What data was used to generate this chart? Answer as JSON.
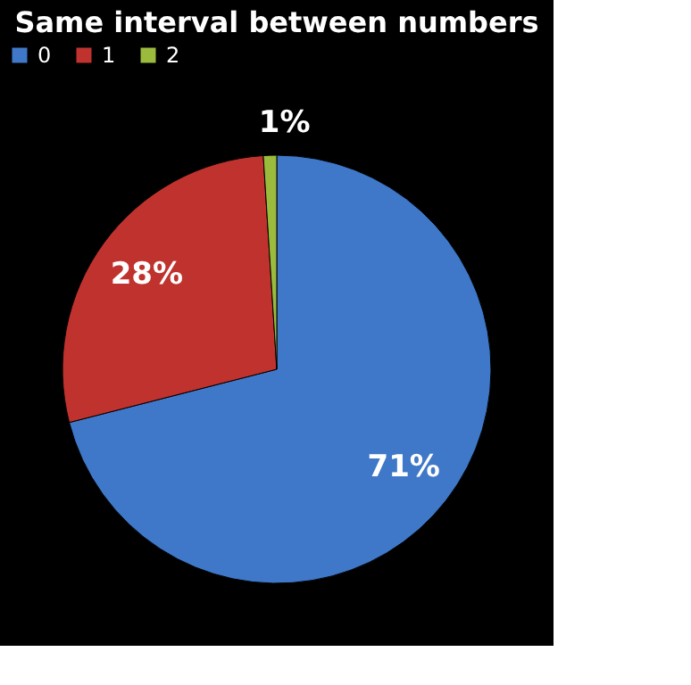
{
  "chart_data": {
    "type": "pie",
    "title": "Same interval between numbers",
    "categories": [
      "0",
      "1",
      "2"
    ],
    "values": [
      71,
      28,
      1
    ],
    "colors": [
      "#3f78c8",
      "#c0322e",
      "#9bbb3c"
    ],
    "value_labels": [
      "71%",
      "28%",
      "1%"
    ],
    "legend": "top"
  }
}
